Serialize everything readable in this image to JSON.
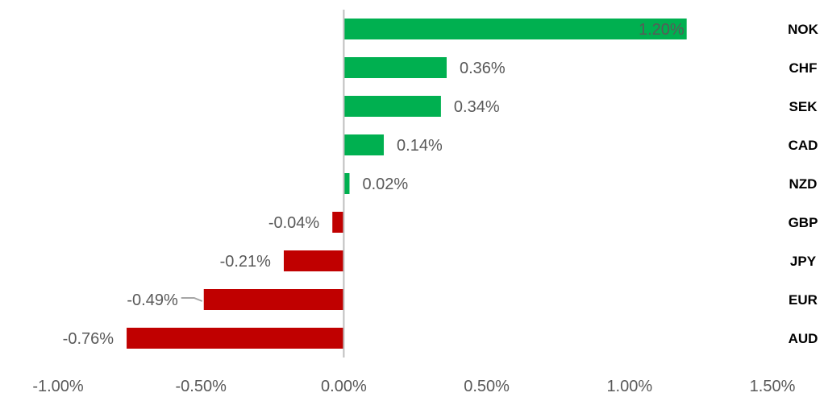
{
  "chart_data": {
    "type": "bar",
    "orientation": "horizontal",
    "categories": [
      "NOK",
      "CHF",
      "SEK",
      "CAD",
      "NZD",
      "GBP",
      "JPY",
      "EUR",
      "AUD"
    ],
    "values": [
      1.2,
      0.36,
      0.34,
      0.14,
      0.02,
      -0.04,
      -0.21,
      -0.49,
      -0.76
    ],
    "value_labels": [
      "1.20%",
      "0.36%",
      "0.34%",
      "0.14%",
      "0.02%",
      "-0.04%",
      "-0.21%",
      "-0.49%",
      "-0.76%"
    ],
    "xlim": [
      -1.0,
      1.5
    ],
    "x_ticks": [
      -1.0,
      -0.5,
      0.0,
      0.5,
      1.0,
      1.5
    ],
    "x_tick_labels": [
      "-1.00%",
      "-0.50%",
      "0.00%",
      "0.50%",
      "1.00%",
      "1.50%"
    ],
    "title": "",
    "xlabel": "",
    "ylabel": "",
    "grid": false,
    "legend": "none",
    "colors": {
      "positive": "#00B050",
      "negative": "#C00000",
      "axis": "#BFBFBF",
      "value_label": "#595959",
      "category_label": "#000000"
    }
  }
}
